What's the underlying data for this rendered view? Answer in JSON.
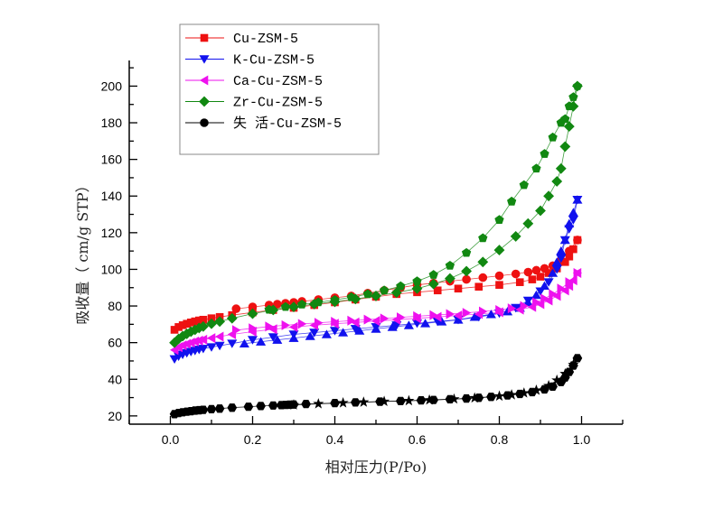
{
  "chart_data": {
    "type": "scatter",
    "title": "",
    "xlabel": "相对压力(P/Po)",
    "ylabel": "吸收量（ cm/g STP）",
    "xlim": [
      -0.1,
      1.1
    ],
    "ylim": [
      15.5,
      214
    ],
    "xticks": [
      0.0,
      0.2,
      0.4,
      0.6,
      0.8,
      1.0
    ],
    "xtick_labels": [
      "0.0",
      "0.2",
      "0.4",
      "0.6",
      "0.8",
      "1.0"
    ],
    "yticks": [
      20,
      40,
      60,
      80,
      100,
      120,
      140,
      160,
      180,
      200
    ],
    "ytick_labels": [
      "20",
      "40",
      "60",
      "80",
      "100",
      "120",
      "140",
      "160",
      "180",
      "200"
    ],
    "grid": false,
    "legend_position": "top-left",
    "series": [
      {
        "name": "Cu-ZSM-5",
        "color": "#ee1111",
        "marker": "square",
        "desorption_marker": "circle",
        "adsorption": {
          "x": [
            0.01,
            0.02,
            0.03,
            0.04,
            0.05,
            0.06,
            0.07,
            0.08,
            0.1,
            0.12,
            0.15,
            0.2,
            0.25,
            0.3,
            0.35,
            0.4,
            0.45,
            0.5,
            0.55,
            0.6,
            0.65,
            0.7,
            0.75,
            0.8,
            0.85,
            0.88,
            0.9,
            0.92,
            0.94,
            0.96,
            0.97,
            0.98,
            0.99
          ],
          "y": [
            67,
            68.5,
            69.5,
            70.3,
            71,
            71.6,
            72.1,
            72.5,
            73.3,
            74,
            75,
            76.5,
            77.8,
            79,
            80.5,
            82,
            83.5,
            85,
            86.5,
            87.5,
            88.5,
            89.5,
            90.5,
            91.5,
            93,
            94.5,
            96,
            98,
            100.5,
            104,
            107,
            111,
            116
          ]
        },
        "desorption": {
          "x": [
            0.99,
            0.97,
            0.95,
            0.93,
            0.91,
            0.89,
            0.87,
            0.84,
            0.8,
            0.76,
            0.72,
            0.68,
            0.64,
            0.6,
            0.56,
            0.52,
            0.48,
            0.44,
            0.4,
            0.36,
            0.32,
            0.3,
            0.28,
            0.26,
            0.24,
            0.2,
            0.16
          ],
          "y": [
            116,
            110,
            105,
            102,
            100.5,
            99.5,
            98.5,
            97.5,
            96.5,
            95.5,
            94.5,
            93.5,
            92.5,
            91.5,
            90,
            88.5,
            87,
            85.5,
            84.5,
            83.5,
            82.5,
            82,
            81.5,
            81,
            80.5,
            79.5,
            78.5
          ]
        }
      },
      {
        "name": "K-Cu-ZSM-5",
        "color": "#1111ee",
        "marker": "triangle-down",
        "desorption_marker": "triangle-up",
        "adsorption": {
          "x": [
            0.01,
            0.02,
            0.03,
            0.04,
            0.05,
            0.06,
            0.07,
            0.08,
            0.1,
            0.12,
            0.15,
            0.2,
            0.25,
            0.3,
            0.35,
            0.4,
            0.45,
            0.5,
            0.55,
            0.6,
            0.65,
            0.7,
            0.75,
            0.8,
            0.84,
            0.87,
            0.9,
            0.92,
            0.94,
            0.95,
            0.96,
            0.97,
            0.98,
            0.99
          ],
          "y": [
            51,
            52.5,
            53.5,
            54.3,
            55,
            55.6,
            56.2,
            56.7,
            57.5,
            58.3,
            59.5,
            61.5,
            63,
            64.5,
            65.5,
            66.5,
            67.5,
            68.5,
            69.5,
            70.5,
            71.5,
            72.5,
            74,
            76,
            79,
            83,
            88,
            93,
            100,
            106,
            116,
            122,
            127,
            138
          ]
        },
        "desorption": {
          "x": [
            0.99,
            0.98,
            0.97,
            0.96,
            0.95,
            0.94,
            0.93,
            0.91,
            0.89,
            0.87,
            0.85,
            0.82,
            0.78,
            0.74,
            0.7,
            0.66,
            0.62,
            0.58,
            0.54,
            0.5,
            0.46,
            0.42,
            0.38,
            0.34,
            0.3,
            0.26,
            0.22,
            0.18
          ],
          "y": [
            138,
            131,
            125,
            116,
            110,
            104,
            98,
            91,
            86,
            82,
            79,
            77,
            75.5,
            74,
            72.5,
            71.5,
            70.5,
            69.5,
            68.5,
            67.5,
            66.5,
            65.5,
            64.5,
            63.5,
            62.5,
            61.5,
            60.5,
            59.5
          ]
        }
      },
      {
        "name": "Ca-Cu-ZSM-5",
        "color": "#ee11ee",
        "marker": "triangle-left",
        "desorption_marker": "triangle-right",
        "adsorption": {
          "x": [
            0.01,
            0.02,
            0.03,
            0.04,
            0.05,
            0.06,
            0.07,
            0.08,
            0.1,
            0.12,
            0.15,
            0.2,
            0.25,
            0.3,
            0.35,
            0.4,
            0.45,
            0.5,
            0.55,
            0.6,
            0.65,
            0.7,
            0.75,
            0.8,
            0.85,
            0.88,
            0.9,
            0.92,
            0.94,
            0.96,
            0.97,
            0.98,
            0.99
          ],
          "y": [
            56,
            57.5,
            58.5,
            59.3,
            60,
            60.6,
            61.1,
            61.6,
            62.5,
            63.3,
            64.5,
            66,
            67.3,
            68.5,
            69.5,
            70.3,
            71,
            71.8,
            72.5,
            73.3,
            74,
            74.8,
            75.6,
            76.6,
            78,
            79.5,
            81,
            83,
            85.5,
            88.5,
            91,
            94,
            98
          ]
        },
        "desorption": {
          "x": [
            0.99,
            0.97,
            0.95,
            0.93,
            0.91,
            0.89,
            0.86,
            0.83,
            0.8,
            0.76,
            0.72,
            0.68,
            0.64,
            0.6,
            0.56,
            0.52,
            0.48,
            0.44,
            0.4,
            0.36,
            0.32,
            0.28,
            0.24,
            0.2,
            0.16
          ],
          "y": [
            98,
            93,
            89.5,
            86.5,
            84,
            82,
            80,
            78.7,
            77.8,
            77,
            76.3,
            75.6,
            75,
            74.4,
            73.8,
            73.2,
            72.6,
            72,
            71.4,
            70.8,
            70.2,
            69.5,
            68.8,
            67.8,
            66.8
          ]
        }
      },
      {
        "name": "Zr-Cu-ZSM-5",
        "color": "#118811",
        "marker": "diamond",
        "desorption_marker": "pentagon",
        "adsorption": {
          "x": [
            0.01,
            0.02,
            0.03,
            0.04,
            0.05,
            0.06,
            0.07,
            0.08,
            0.1,
            0.12,
            0.15,
            0.2,
            0.25,
            0.3,
            0.35,
            0.4,
            0.45,
            0.5,
            0.55,
            0.6,
            0.64,
            0.68,
            0.72,
            0.76,
            0.8,
            0.84,
            0.87,
            0.9,
            0.92,
            0.94,
            0.95,
            0.96,
            0.97,
            0.98,
            0.99
          ],
          "y": [
            60,
            62,
            63.5,
            64.8,
            66,
            67,
            68,
            68.8,
            70.3,
            71.5,
            73.3,
            75.8,
            77.8,
            79.5,
            81,
            82.3,
            83.8,
            85.5,
            87.3,
            89.5,
            92,
            95,
            99,
            104,
            110.5,
            118,
            125,
            132,
            140,
            148,
            155,
            167,
            178,
            189,
            200
          ]
        },
        "desorption": {
          "x": [
            0.99,
            0.98,
            0.97,
            0.96,
            0.95,
            0.93,
            0.91,
            0.89,
            0.86,
            0.83,
            0.8,
            0.76,
            0.72,
            0.68,
            0.64,
            0.6,
            0.56,
            0.52,
            0.48,
            0.44,
            0.4,
            0.36,
            0.32,
            0.28,
            0.24
          ],
          "y": [
            200,
            194,
            189,
            182,
            180,
            172,
            163,
            155,
            146,
            137,
            127,
            117,
            109,
            102,
            97,
            93.5,
            90.8,
            88.5,
            86.5,
            84.8,
            83.3,
            82,
            80.8,
            79.5,
            78
          ]
        }
      },
      {
        "name": "失 活-Cu-ZSM-5",
        "color": "#000000",
        "marker": "hexagon",
        "desorption_marker": "star",
        "adsorption": {
          "x": [
            0.01,
            0.02,
            0.03,
            0.04,
            0.05,
            0.06,
            0.07,
            0.08,
            0.1,
            0.12,
            0.15,
            0.19,
            0.22,
            0.25,
            0.27,
            0.28,
            0.29,
            0.3,
            0.33,
            0.4,
            0.45,
            0.51,
            0.56,
            0.61,
            0.64,
            0.68,
            0.72,
            0.75,
            0.78,
            0.82,
            0.85,
            0.88,
            0.91,
            0.93,
            0.95,
            0.96,
            0.97,
            0.98,
            0.99
          ],
          "y": [
            21,
            21.6,
            22,
            22.3,
            22.6,
            22.9,
            23.1,
            23.3,
            23.7,
            24,
            24.5,
            25,
            25.4,
            25.7,
            25.9,
            26,
            26.1,
            26.2,
            26.5,
            27,
            27.4,
            27.8,
            28.1,
            28.5,
            28.7,
            29.1,
            29.5,
            29.9,
            30.4,
            31.2,
            32,
            33,
            34.5,
            36,
            38.5,
            41,
            44,
            47.5,
            51.5
          ]
        },
        "desorption": {
          "x": [
            0.98,
            0.96,
            0.94,
            0.92,
            0.89,
            0.86,
            0.83,
            0.8,
            0.74,
            0.69,
            0.63,
            0.58,
            0.52,
            0.47,
            0.42,
            0.36,
            0.3
          ],
          "y": [
            48,
            43,
            39.5,
            36.5,
            34,
            32.5,
            31.5,
            30.8,
            29.8,
            29.2,
            28.7,
            28.3,
            27.9,
            27.5,
            27.1,
            26.6,
            26
          ]
        }
      }
    ]
  }
}
